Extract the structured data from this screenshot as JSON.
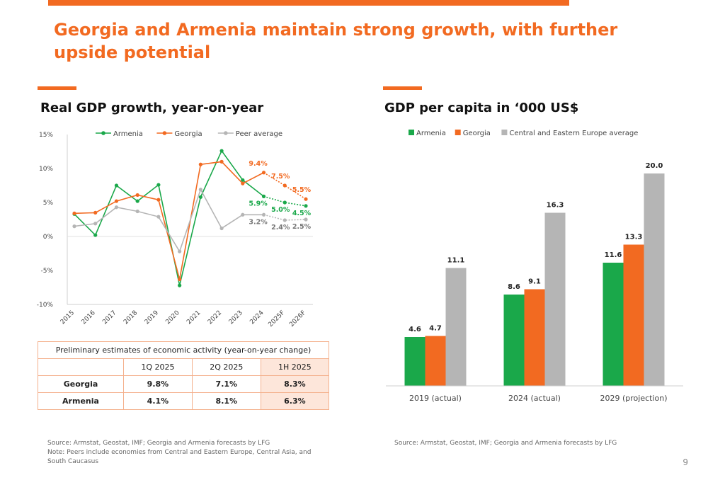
{
  "slide": {
    "title": "Georgia and Armenia maintain strong growth, with further upside potential",
    "page_number": "9"
  },
  "left": {
    "title": "Real GDP growth, year-on-year",
    "source": "Source: Armstat, Geostat, IMF; Georgia and Armenia forecasts by LFG",
    "note": "Note: Peers include economies from Central and Eastern Europe, Central Asia, and South Caucasus"
  },
  "right": {
    "title": "GDP per capita in ‘000 US$",
    "source": "Source: Armstat, Geostat, IMF; Georgia and Armenia forecasts by LFG"
  },
  "colors": {
    "armenia": "#1aa84a",
    "georgia": "#f26a21",
    "peer": "#b5b5b5",
    "accent": "#f26a21"
  },
  "chart_data": [
    {
      "type": "line",
      "title": "Real GDP growth, year-on-year",
      "x": [
        "2015",
        "2016",
        "2017",
        "2018",
        "2019",
        "2020",
        "2021",
        "2022",
        "2023",
        "2024",
        "2025F",
        "2026F"
      ],
      "ylim": [
        -10,
        15
      ],
      "yticks": [
        "15%",
        "10%",
        "5%",
        "0%",
        "-5%",
        "-10%"
      ],
      "legend_position": "top",
      "series": [
        {
          "name": "Armenia",
          "color": "#1aa84a",
          "values": [
            3.3,
            0.2,
            7.5,
            5.2,
            7.6,
            -7.2,
            5.8,
            12.6,
            8.3,
            5.9,
            5.0,
            4.5
          ]
        },
        {
          "name": "Georgia",
          "color": "#f26a21",
          "values": [
            3.4,
            3.5,
            5.2,
            6.1,
            5.4,
            -6.3,
            10.6,
            11.0,
            7.8,
            9.4,
            7.5,
            5.5
          ]
        },
        {
          "name": "Peer average",
          "color": "#b5b5b5",
          "values": [
            1.5,
            1.9,
            4.3,
            3.7,
            2.9,
            -2.2,
            6.9,
            1.2,
            3.2,
            3.2,
            2.4,
            2.5
          ]
        }
      ],
      "data_labels": [
        {
          "series": "Georgia",
          "index": 9,
          "text": "9.4%"
        },
        {
          "series": "Georgia",
          "index": 10,
          "text": "7.5%"
        },
        {
          "series": "Georgia",
          "index": 11,
          "text": "5.5%"
        },
        {
          "series": "Armenia",
          "index": 9,
          "text": "5.9%"
        },
        {
          "series": "Armenia",
          "index": 10,
          "text": "5.0%"
        },
        {
          "series": "Armenia",
          "index": 11,
          "text": "4.5%"
        },
        {
          "series": "Peer average",
          "index": 9,
          "text": "3.2%"
        },
        {
          "series": "Peer average",
          "index": 10,
          "text": "2.4%"
        },
        {
          "series": "Peer average",
          "index": 11,
          "text": "2.5%"
        }
      ],
      "forecast_from_index": 9,
      "grid": false
    },
    {
      "type": "bar",
      "title": "GDP per capita in ‘000 US$",
      "categories": [
        "2019 (actual)",
        "2024 (actual)",
        "2029 (projection)"
      ],
      "ylim": [
        0,
        22
      ],
      "legend_position": "top",
      "series": [
        {
          "name": "Armenia",
          "color": "#1aa84a",
          "values": [
            4.6,
            8.6,
            11.6
          ],
          "labels": [
            "4.6",
            "8.6",
            "11.6"
          ]
        },
        {
          "name": "Georgia",
          "color": "#f26a21",
          "values": [
            4.7,
            9.1,
            13.3
          ],
          "labels": [
            "4.7",
            "9.1",
            "13.3"
          ]
        },
        {
          "name": "Central and Eastern Europe average",
          "color": "#b5b5b5",
          "values": [
            11.1,
            16.3,
            20.0
          ],
          "labels": [
            "11.1",
            "16.3",
            "20.0"
          ]
        }
      ],
      "grid": false
    }
  ],
  "table": {
    "caption": "Preliminary estimates of economic activity (year-on-year change)",
    "columns": [
      "",
      "1Q 2025",
      "2Q 2025",
      "1H 2025"
    ],
    "rows": [
      {
        "label": "Georgia",
        "values": [
          "9.8%",
          "7.1%",
          "8.3%"
        ]
      },
      {
        "label": "Armenia",
        "values": [
          "4.1%",
          "8.1%",
          "6.3%"
        ]
      }
    ]
  }
}
